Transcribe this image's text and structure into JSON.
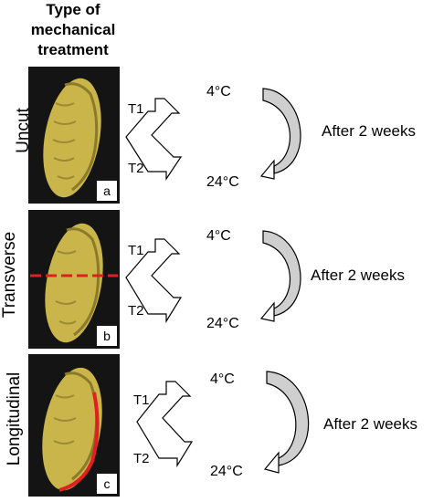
{
  "header": {
    "line1": "Type of",
    "line2": "mechanical",
    "line3": "treatment"
  },
  "rows": [
    {
      "label": "Uncut",
      "panel": "a",
      "t1": "T1",
      "t2": "T2",
      "cold": "4°C",
      "warm": "24°C",
      "after": "After 2 weeks"
    },
    {
      "label": "Transverse",
      "panel": "b",
      "t1": "T1",
      "t2": "T2",
      "cold": "4°C",
      "warm": "24°C",
      "after": "After 2 weeks"
    },
    {
      "label": "Longitudinal",
      "panel": "c",
      "t1": "T1",
      "t2": "T2",
      "cold": "4°C",
      "warm": "24°C",
      "after": "After 2 weeks"
    }
  ],
  "colors": {
    "seed": "#c9b54a",
    "seed_dark": "#8a7a2a",
    "cut_line": "#e02020",
    "arrow_fill": "#cfcfcf",
    "photo_bg": "#141414"
  }
}
